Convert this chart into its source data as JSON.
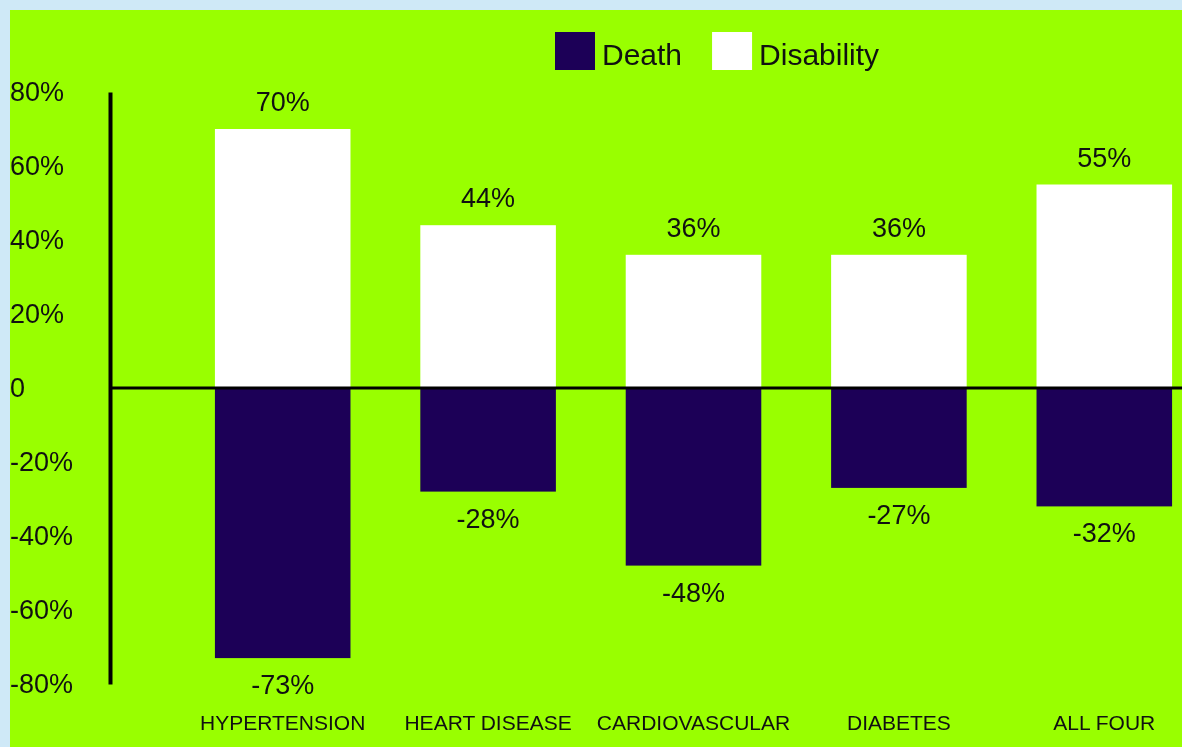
{
  "chart_data": {
    "type": "bar",
    "stacked": true,
    "categories": [
      "HYPERTENSION",
      "HEART DISEASE",
      "CARDIOVASCULAR",
      "DIABETES",
      "ALL FOUR"
    ],
    "series": [
      {
        "name": "Death",
        "color": "#1c0057",
        "values": [
          -73,
          -28,
          -48,
          -27,
          -32
        ],
        "value_labels": [
          "-73%",
          "-28%",
          "-48%",
          "-27%",
          "-32%"
        ]
      },
      {
        "name": "Disability",
        "color": "#ffffff",
        "values": [
          70,
          44,
          36,
          36,
          55
        ],
        "value_labels": [
          "70%",
          "44%",
          "36%",
          "36%",
          "55%"
        ]
      }
    ],
    "ylim": [
      -80,
      80
    ],
    "yticks": [
      {
        "value": -80,
        "label": "-80%"
      },
      {
        "value": -60,
        "label": "-60%"
      },
      {
        "value": -40,
        "label": "-40%"
      },
      {
        "value": -20,
        "label": "-20%"
      },
      0,
      {
        "value": 20,
        "label": "20%"
      },
      {
        "value": 40,
        "label": "40%"
      },
      {
        "value": 60,
        "label": "60%"
      },
      {
        "value": 80,
        "label": "80%"
      }
    ],
    "legend": "top"
  }
}
